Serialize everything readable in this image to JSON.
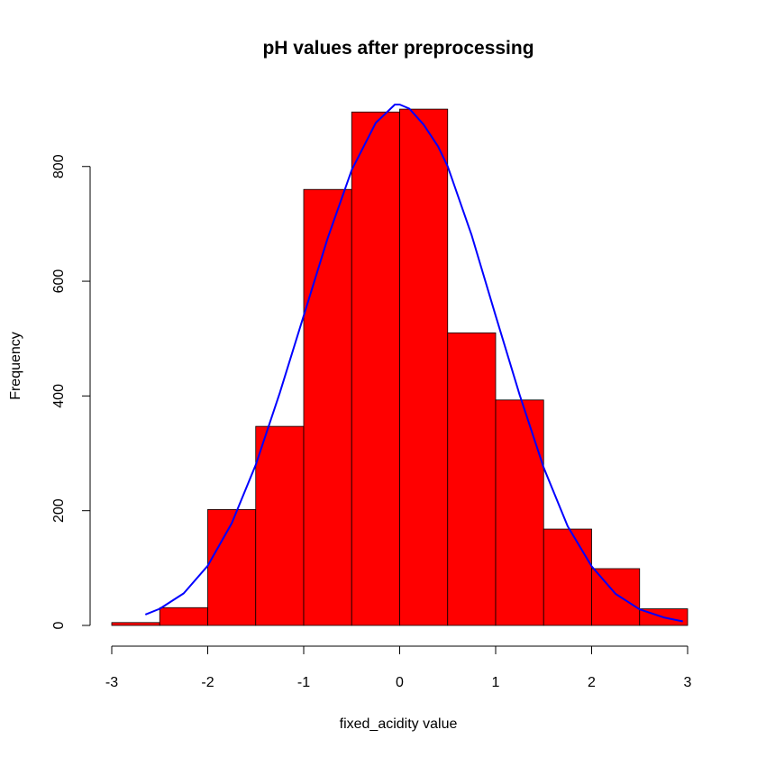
{
  "chart_data": {
    "type": "bar",
    "title": "pH values after preprocessing",
    "xlabel": "fixed_acidity value",
    "ylabel": "Frequency",
    "bins": [
      {
        "from": -3.0,
        "to": -2.5,
        "count": 5
      },
      {
        "from": -2.5,
        "to": -2.0,
        "count": 31
      },
      {
        "from": -2.0,
        "to": -1.5,
        "count": 202
      },
      {
        "from": -1.5,
        "to": -1.0,
        "count": 347
      },
      {
        "from": -1.0,
        "to": -0.5,
        "count": 760
      },
      {
        "from": -0.5,
        "to": 0.0,
        "count": 895
      },
      {
        "from": 0.0,
        "to": 0.5,
        "count": 900
      },
      {
        "from": 0.5,
        "to": 1.0,
        "count": 510
      },
      {
        "from": 1.0,
        "to": 1.5,
        "count": 393
      },
      {
        "from": 1.5,
        "to": 2.0,
        "count": 168
      },
      {
        "from": 2.0,
        "to": 2.5,
        "count": 99
      },
      {
        "from": 2.5,
        "to": 3.0,
        "count": 29
      }
    ],
    "density_curve": {
      "type": "line",
      "x": [
        -2.65,
        -2.5,
        -2.25,
        -2.0,
        -1.75,
        -1.5,
        -1.25,
        -1.0,
        -0.75,
        -0.5,
        -0.25,
        -0.05,
        0.0,
        0.1,
        0.25,
        0.4,
        0.5,
        0.75,
        1.0,
        1.25,
        1.5,
        1.75,
        2.0,
        2.25,
        2.5,
        2.75,
        2.95
      ],
      "y": [
        19,
        29,
        56,
        104,
        178,
        280,
        405,
        540,
        675,
        794,
        876,
        908,
        908,
        901,
        873,
        835,
        800,
        680,
        540,
        402,
        275,
        173,
        103,
        55,
        28,
        14,
        7
      ]
    },
    "xlim": [
      -3,
      3
    ],
    "ylim": [
      0,
      908
    ],
    "xticks": [
      -3,
      -2,
      -1,
      0,
      1,
      2,
      3
    ],
    "yticks": [
      0,
      200,
      400,
      600,
      800
    ],
    "bar_color": "#ff0000",
    "bar_border": "#000000",
    "line_color": "#0000ff",
    "grid": false
  }
}
